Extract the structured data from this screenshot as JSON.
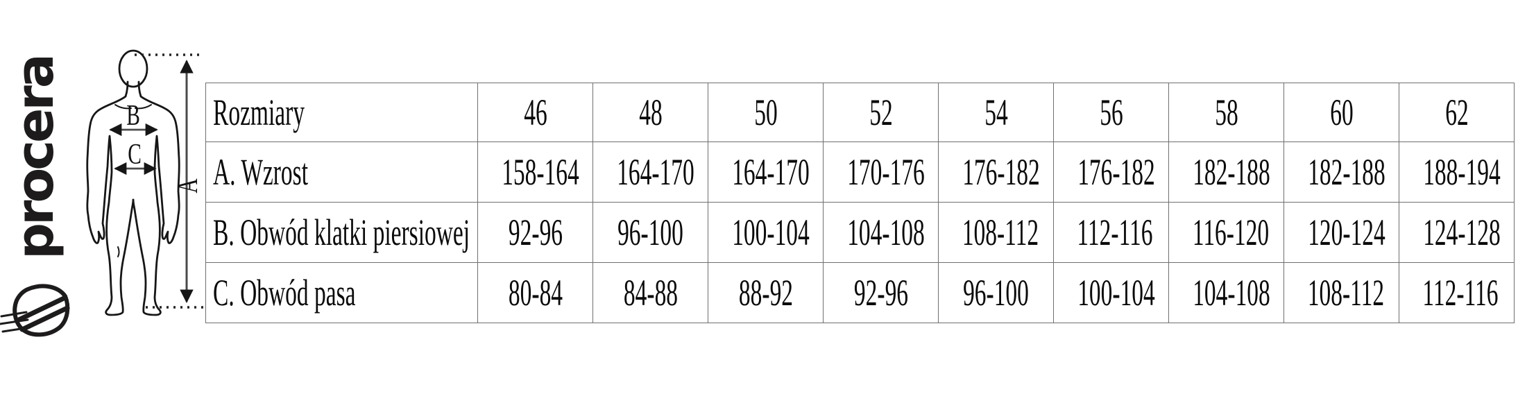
{
  "logo": {
    "brand": "procera",
    "icon": "procera-shield"
  },
  "figure": {
    "height_label": "A",
    "chest_label": "B",
    "waist_label": "C"
  },
  "colors": {
    "text": "#0a0a0a",
    "table_border": "#6f6f6f",
    "logo": "#1d1b1b",
    "arrow": "#4a4a4a"
  },
  "table": {
    "header": [
      "Rozmiary",
      "46",
      "48",
      "50",
      "52",
      "54",
      "56",
      "58",
      "60",
      "62"
    ],
    "rows": [
      {
        "label": "A. Wzrost",
        "values": [
          "158-164",
          "164-170",
          "164-170",
          "170-176",
          "176-182",
          "176-182",
          "182-188",
          "182-188",
          "188-194"
        ]
      },
      {
        "label": "B. Obwód klatki piersiowej",
        "values": [
          "92-96",
          "96-100",
          "100-104",
          "104-108",
          "108-112",
          "112-116",
          "116-120",
          "120-124",
          "124-128"
        ]
      },
      {
        "label": "C. Obwód pasa",
        "values": [
          "80-84",
          "84-88",
          "88-92",
          "92-96",
          "96-100",
          "100-104",
          "104-108",
          "108-112",
          "112-116"
        ]
      }
    ]
  }
}
